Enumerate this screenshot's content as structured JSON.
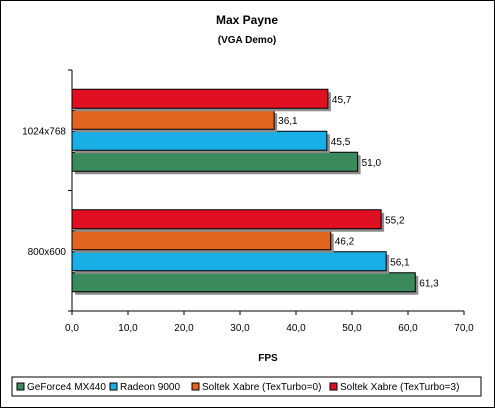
{
  "chart_data": {
    "type": "bar",
    "orientation": "horizontal",
    "title": "Max Payne",
    "subtitle": "(VGA Demo)",
    "xlabel": "FPS",
    "ylabel": "",
    "xlim": [
      0,
      70
    ],
    "xticks": [
      0,
      10,
      20,
      30,
      40,
      50,
      60,
      70
    ],
    "xtick_labels": [
      "0,0",
      "10,0",
      "20,0",
      "30,0",
      "40,0",
      "50,0",
      "60,0",
      "70,0"
    ],
    "categories": [
      "1024x768",
      "800x600"
    ],
    "series": [
      {
        "name": "GeForce4 MX440",
        "color": "#3a8a5e",
        "values": [
          51.0,
          61.3
        ],
        "labels": [
          "51,0",
          "61,3"
        ]
      },
      {
        "name": "Radeon 9000",
        "color": "#1aaee6",
        "values": [
          45.5,
          56.1
        ],
        "labels": [
          "45,5",
          "56,1"
        ]
      },
      {
        "name": "Soltek Xabre (TexTurbo=0)",
        "color": "#e0651e",
        "values": [
          36.1,
          46.2
        ],
        "labels": [
          "36,1",
          "46,2"
        ]
      },
      {
        "name": "Soltek Xabre (TexTurbo=3)",
        "color": "#e01022",
        "values": [
          45.7,
          55.2
        ],
        "labels": [
          "45,7",
          "55,2"
        ]
      }
    ],
    "grid": false,
    "legend_position": "bottom"
  }
}
